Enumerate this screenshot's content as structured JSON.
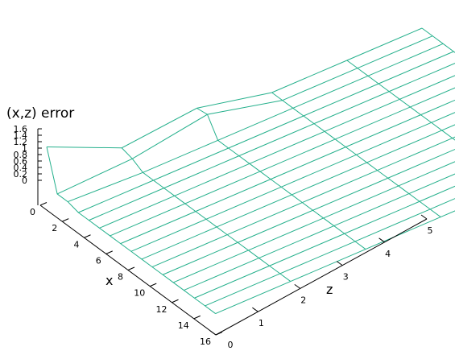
{
  "chart_data": {
    "type": "surface",
    "title": "",
    "zlabel": "(x,z) error",
    "xlabel": "x",
    "ylabel": "z",
    "x_ticks": [
      "0",
      "2",
      "4",
      "6",
      "8",
      "10",
      "12",
      "14",
      "16"
    ],
    "y_ticks": [
      "0",
      "1",
      "2",
      "3",
      "4",
      "5"
    ],
    "z_ticks": [
      "0",
      "0.2",
      "0.4",
      "0.6",
      "0.8",
      "1",
      "1.2",
      "1.4",
      "1.6"
    ],
    "xlim": [
      0,
      16
    ],
    "ylim": [
      0,
      5
    ],
    "zlim": [
      0,
      1.6
    ],
    "grid_rows": 16,
    "grid_cols": 5,
    "surface_color": "#25b08c",
    "nonzero_points": [
      {
        "x": 0,
        "z": 0,
        "value": 1.4
      },
      {
        "x": 1,
        "z": 0,
        "value": 0.1
      },
      {
        "x": 2,
        "z": 0,
        "value": 0.1
      },
      {
        "x": 1,
        "z": 1,
        "value": 0.2
      },
      {
        "x": 0,
        "z": 1,
        "value": 0.3
      },
      {
        "x": 0,
        "z": 2,
        "value": 0.55
      },
      {
        "x": 1,
        "z": 2,
        "value": 0.6
      }
    ]
  }
}
